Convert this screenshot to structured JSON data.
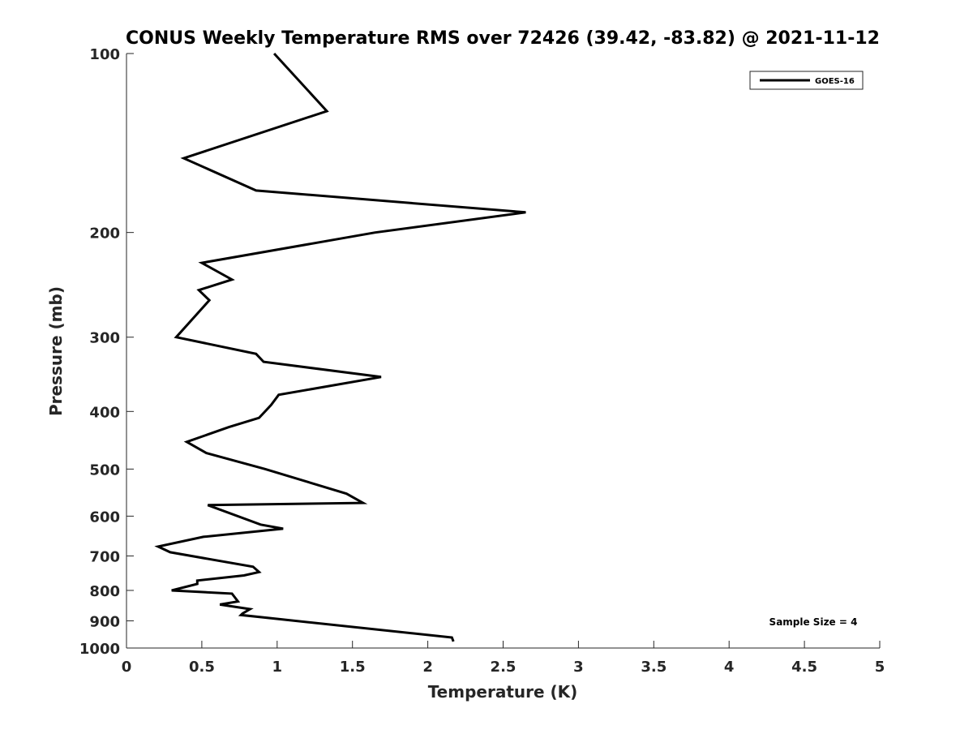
{
  "chart_data": {
    "type": "line",
    "title": "CONUS Weekly Temperature RMS over 72426 (39.42, -83.82) @ 2021-11-12",
    "xlabel": "Temperature (K)",
    "ylabel": "Pressure (mb)",
    "xlim": [
      0,
      5
    ],
    "ylim": [
      100,
      1000
    ],
    "y_scale": "log",
    "y_reversed": true,
    "x_ticks": [
      "0",
      "0.5",
      "1",
      "1.5",
      "2",
      "2.5",
      "3",
      "3.5",
      "4",
      "4.5",
      "5"
    ],
    "y_ticks": [
      "100",
      "200",
      "300",
      "400",
      "500",
      "600",
      "700",
      "800",
      "900",
      "1000"
    ],
    "grid": false,
    "legend": {
      "position": "top-right",
      "entries": [
        "GOES-16"
      ]
    },
    "annotation": "Sample Size = 4",
    "series": [
      {
        "name": "GOES-16",
        "color": "#000000",
        "points": [
          [
            0.98,
            100
          ],
          [
            1.33,
            125
          ],
          [
            0.38,
            150
          ],
          [
            0.86,
            170
          ],
          [
            2.65,
            185
          ],
          [
            1.65,
            200
          ],
          [
            0.5,
            225
          ],
          [
            0.7,
            240
          ],
          [
            0.48,
            250
          ],
          [
            0.55,
            260
          ],
          [
            0.33,
            300
          ],
          [
            0.86,
            320
          ],
          [
            0.91,
            330
          ],
          [
            1.69,
            350
          ],
          [
            1.01,
            375
          ],
          [
            0.96,
            390
          ],
          [
            0.88,
            410
          ],
          [
            0.68,
            425
          ],
          [
            0.4,
            450
          ],
          [
            0.53,
            470
          ],
          [
            0.92,
            500
          ],
          [
            1.46,
            550
          ],
          [
            1.57,
            570
          ],
          [
            0.54,
            575
          ],
          [
            0.89,
            620
          ],
          [
            1.04,
            630
          ],
          [
            0.51,
            650
          ],
          [
            0.21,
            675
          ],
          [
            0.29,
            690
          ],
          [
            0.84,
            730
          ],
          [
            0.88,
            745
          ],
          [
            0.78,
            755
          ],
          [
            0.47,
            770
          ],
          [
            0.47,
            780
          ],
          [
            0.3,
            800
          ],
          [
            0.7,
            810
          ],
          [
            0.74,
            835
          ],
          [
            0.62,
            845
          ],
          [
            0.82,
            860
          ],
          [
            0.77,
            875
          ],
          [
            0.76,
            880
          ],
          [
            2.16,
            960
          ],
          [
            2.17,
            975
          ]
        ]
      }
    ]
  }
}
